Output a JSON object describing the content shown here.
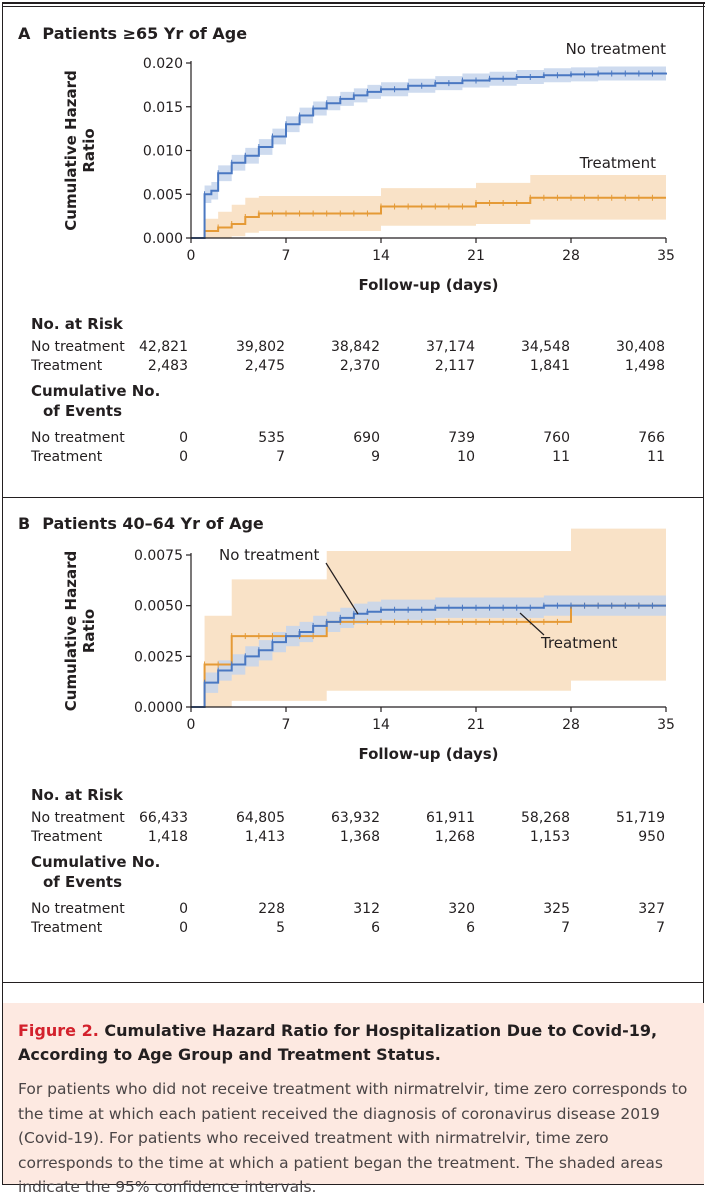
{
  "panels": [
    {
      "letter": "A",
      "title": "Patients ≥65 Yr of Age",
      "ylabel": "Cumulative Hazard Ratio",
      "ylabel_lines": [
        "Cumulative Hazard",
        "Ratio"
      ],
      "xlabel": "Follow-up (days)",
      "xticks": [
        "0",
        "7",
        "14",
        "21",
        "28",
        "35"
      ],
      "yticks": [
        "0.000",
        "0.005",
        "0.010",
        "0.015",
        "0.020"
      ],
      "risk_header": "No. at Risk",
      "events_header_lines": [
        "Cumulative No.",
        "of Events"
      ],
      "risk": [
        {
          "label": "No treatment",
          "values": [
            "42,821",
            "39,802",
            "38,842",
            "37,174",
            "34,548",
            "30,408"
          ]
        },
        {
          "label": "Treatment",
          "values": [
            "2,483",
            "2,475",
            "2,370",
            "2,117",
            "1,841",
            "1,498"
          ]
        }
      ],
      "events": [
        {
          "label": "No treatment",
          "values": [
            "0",
            "535",
            "690",
            "739",
            "760",
            "766"
          ]
        },
        {
          "label": "Treatment",
          "values": [
            "0",
            "7",
            "9",
            "10",
            "11",
            "11"
          ]
        }
      ]
    },
    {
      "letter": "B",
      "title": "Patients 40–64 Yr of Age",
      "ylabel": "Cumulative Hazard Ratio",
      "ylabel_lines": [
        "Cumulative Hazard",
        "Ratio"
      ],
      "xlabel": "Follow-up (days)",
      "xticks": [
        "0",
        "7",
        "14",
        "21",
        "28",
        "35"
      ],
      "yticks": [
        "0.0000",
        "0.0025",
        "0.0050",
        "0.0075"
      ],
      "risk_header": "No. at Risk",
      "events_header_lines": [
        "Cumulative No.",
        "of Events"
      ],
      "risk": [
        {
          "label": "No treatment",
          "values": [
            "66,433",
            "64,805",
            "63,932",
            "61,911",
            "58,268",
            "51,719"
          ]
        },
        {
          "label": "Treatment",
          "values": [
            "1,418",
            "1,413",
            "1,368",
            "1,268",
            "1,153",
            "950"
          ]
        }
      ],
      "events": [
        {
          "label": "No treatment",
          "values": [
            "0",
            "228",
            "312",
            "320",
            "325",
            "327"
          ]
        },
        {
          "label": "Treatment",
          "values": [
            "0",
            "5",
            "6",
            "6",
            "7",
            "7"
          ]
        }
      ]
    }
  ],
  "caption": {
    "figure_label": "Figure 2.",
    "title": "Cumulative Hazard Ratio for Hospitalization Due to Covid-19, According to Age Group and Treatment Status.",
    "body": "For patients who did not receive treatment with nirmatrelvir, time zero corresponds to the time at which each patient received the diagnosis of coronavirus disease 2019 (Covid-19). For patients who received treatment with nirmatrelvir, time zero corresponds to the time at which a patient began the treatment. The shaded areas indicate the 95% confidence intervals."
  },
  "colors": {
    "no_treatment_line": "#4a78c2",
    "no_treatment_band": "#c5d5ec",
    "treatment_line": "#e59a36",
    "treatment_band": "#f8dfc1",
    "caption_bg": "#fde9e1",
    "caption_title_accent": "#d3212c"
  },
  "chart_data": [
    {
      "type": "line",
      "title": "Patients ≥65 Yr of Age",
      "xlabel": "Follow-up (days)",
      "ylabel": "Cumulative Hazard Ratio",
      "xlim": [
        0,
        35
      ],
      "ylim": [
        0,
        0.02
      ],
      "grid": false,
      "legend": "inline labels",
      "series": [
        {
          "name": "No treatment",
          "step": true,
          "x": [
            0,
            1,
            1.5,
            2,
            3,
            4,
            5,
            6,
            7,
            8,
            9,
            10,
            11,
            12,
            13,
            14,
            16,
            18,
            20,
            22,
            24,
            26,
            28,
            30,
            32,
            35
          ],
          "y": [
            0.0,
            0.005,
            0.0054,
            0.0074,
            0.0086,
            0.0094,
            0.0104,
            0.0116,
            0.013,
            0.014,
            0.0148,
            0.0154,
            0.0159,
            0.0163,
            0.0167,
            0.017,
            0.0174,
            0.0177,
            0.018,
            0.0182,
            0.0184,
            0.0186,
            0.0187,
            0.0188,
            0.0188,
            0.0189
          ],
          "lower": [
            0.0,
            0.004,
            0.0044,
            0.0065,
            0.0077,
            0.0085,
            0.0095,
            0.0107,
            0.0121,
            0.0131,
            0.014,
            0.0146,
            0.0151,
            0.0155,
            0.0159,
            0.0162,
            0.0166,
            0.0169,
            0.0172,
            0.0174,
            0.0176,
            0.0178,
            0.0179,
            0.018,
            0.018,
            0.0181
          ],
          "upper": [
            0.0,
            0.006,
            0.0064,
            0.0083,
            0.0095,
            0.0103,
            0.0113,
            0.0125,
            0.0139,
            0.0149,
            0.0156,
            0.0162,
            0.0167,
            0.0171,
            0.0175,
            0.0178,
            0.0182,
            0.0185,
            0.0188,
            0.019,
            0.0192,
            0.0194,
            0.0195,
            0.0196,
            0.0196,
            0.0197
          ]
        },
        {
          "name": "Treatment",
          "step": true,
          "x": [
            0,
            1,
            2,
            3,
            4,
            5,
            14,
            21,
            25,
            35
          ],
          "y": [
            0.0,
            0.0008,
            0.0012,
            0.0016,
            0.0024,
            0.0028,
            0.0036,
            0.004,
            0.0046,
            0.0046
          ],
          "lower": [
            0.0,
            0.0,
            0.0,
            0.0002,
            0.0006,
            0.0008,
            0.0014,
            0.0016,
            0.0021,
            0.0021
          ],
          "upper": [
            0.0,
            0.0022,
            0.003,
            0.0038,
            0.0046,
            0.0048,
            0.0057,
            0.0063,
            0.0072,
            0.0072
          ]
        }
      ]
    },
    {
      "type": "line",
      "title": "Patients 40–64 Yr of Age",
      "xlabel": "Follow-up (days)",
      "ylabel": "Cumulative Hazard Ratio",
      "xlim": [
        0,
        35
      ],
      "ylim": [
        0,
        0.0075
      ],
      "grid": false,
      "legend": "inline labels",
      "series": [
        {
          "name": "No treatment",
          "step": true,
          "x": [
            0,
            1,
            2,
            3,
            4,
            5,
            6,
            7,
            8,
            9,
            10,
            11,
            12,
            13,
            14,
            16,
            18,
            20,
            22,
            24,
            26,
            28,
            30,
            32,
            35
          ],
          "y": [
            0.0,
            0.0012,
            0.0018,
            0.0021,
            0.0025,
            0.0028,
            0.0032,
            0.0035,
            0.0037,
            0.004,
            0.0042,
            0.0044,
            0.0046,
            0.0047,
            0.0048,
            0.0048,
            0.0049,
            0.0049,
            0.0049,
            0.0049,
            0.005,
            0.005,
            0.005,
            0.005,
            0.005
          ],
          "lower": [
            0.0,
            0.0007,
            0.0013,
            0.0016,
            0.002,
            0.0023,
            0.0027,
            0.003,
            0.0032,
            0.0035,
            0.0037,
            0.0039,
            0.0041,
            0.0042,
            0.0043,
            0.0043,
            0.0044,
            0.0044,
            0.0044,
            0.0044,
            0.0045,
            0.0045,
            0.0045,
            0.0045,
            0.0045
          ],
          "upper": [
            0.0,
            0.0017,
            0.0023,
            0.0026,
            0.003,
            0.0033,
            0.0037,
            0.004,
            0.0042,
            0.0045,
            0.0047,
            0.0049,
            0.0051,
            0.0052,
            0.0053,
            0.0053,
            0.0054,
            0.0054,
            0.0054,
            0.0054,
            0.0055,
            0.0055,
            0.0055,
            0.0055,
            0.0055
          ]
        },
        {
          "name": "Treatment",
          "step": true,
          "x": [
            0,
            1,
            3,
            10,
            28,
            35
          ],
          "y": [
            0.0,
            0.0021,
            0.0035,
            0.0042,
            0.005,
            0.005
          ],
          "lower": [
            0.0,
            0.0,
            0.0003,
            0.0008,
            0.0013,
            0.0013
          ],
          "upper": [
            0.0,
            0.0045,
            0.0063,
            0.0077,
            0.0088,
            0.0088
          ]
        }
      ]
    }
  ]
}
